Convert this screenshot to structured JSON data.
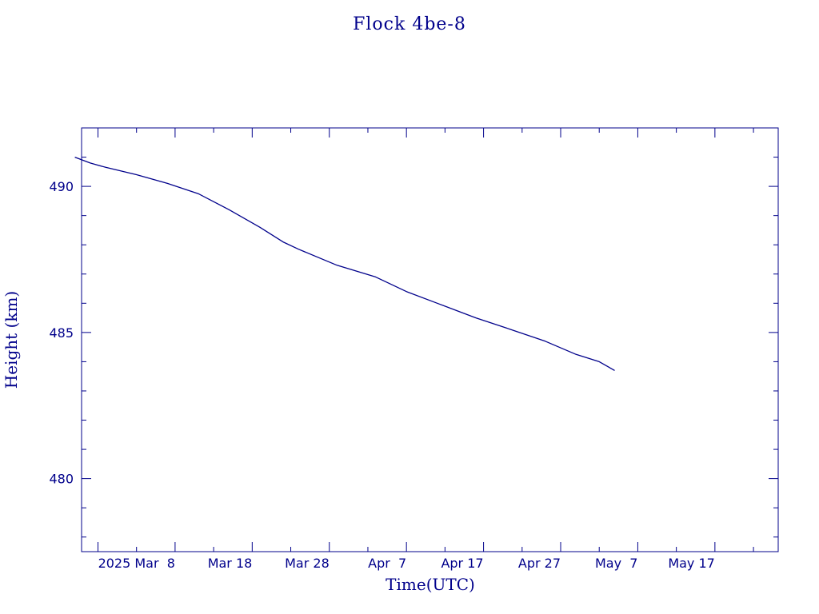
{
  "chart_data": {
    "type": "line",
    "title": "Flock 4be-8",
    "xlabel": "Time(UTC)",
    "ylabel": "Height (km)",
    "x_range": [
      "2025-02-23T21:00",
      "2025-05-25T05:00"
    ],
    "ylim": [
      477.5,
      492
    ],
    "x_ticks": [
      {
        "date": "2025-02-26",
        "label": ""
      },
      {
        "date": "2025-03-08",
        "label": "2025 Mar  8"
      },
      {
        "date": "2025-03-18",
        "label": "Mar 18"
      },
      {
        "date": "2025-03-28",
        "label": "Mar 28"
      },
      {
        "date": "2025-04-07",
        "label": "Apr  7"
      },
      {
        "date": "2025-04-17",
        "label": "Apr 17"
      },
      {
        "date": "2025-04-27",
        "label": "Apr 27"
      },
      {
        "date": "2025-05-07",
        "label": "May  7"
      },
      {
        "date": "2025-05-17",
        "label": "May 17"
      }
    ],
    "y_ticks": [
      480,
      485,
      490
    ],
    "y_minor_step": 1,
    "grid": false,
    "color": "#00008b",
    "series": [
      {
        "x": [
          "2025-02-23",
          "2025-02-25",
          "2025-02-27",
          "2025-03-03",
          "2025-03-07",
          "2025-03-11",
          "2025-03-15",
          "2025-03-19",
          "2025-03-22",
          "2025-03-24",
          "2025-03-29",
          "2025-04-03",
          "2025-04-07",
          "2025-04-11",
          "2025-04-16",
          "2025-04-20",
          "2025-04-25",
          "2025-04-29",
          "2025-05-02",
          "2025-05-04"
        ],
        "y": [
          491.0,
          490.8,
          490.65,
          490.4,
          490.1,
          489.75,
          489.2,
          488.6,
          488.1,
          487.85,
          487.3,
          486.9,
          486.4,
          486.0,
          485.5,
          485.15,
          484.7,
          484.25,
          484.0,
          483.7
        ]
      }
    ]
  }
}
